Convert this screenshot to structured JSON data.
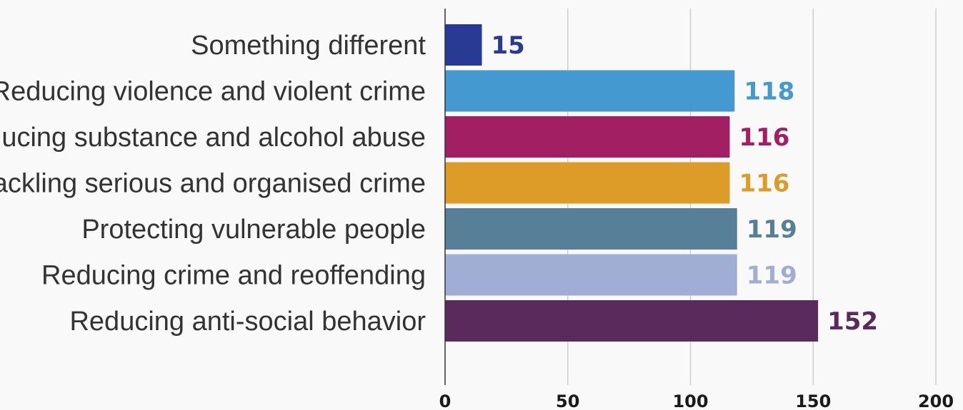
{
  "chart_data": {
    "type": "bar",
    "orientation": "horizontal",
    "categories": [
      "Something different",
      "Reducing violence and violent crime",
      "Reducing substance and alcohol abuse",
      "Tackling serious and organised crime",
      "Protecting vulnerable people",
      "Reducing crime and reoffending",
      "Reducing anti-social behavior"
    ],
    "values": [
      15,
      118,
      116,
      116,
      119,
      119,
      152
    ],
    "colors": [
      "#283a94",
      "#4499d0",
      "#a11f62",
      "#dd9c27",
      "#587f98",
      "#a0aed6",
      "#5a2a5c"
    ],
    "xlim": [
      0,
      200
    ],
    "xticks": [
      0,
      50,
      100,
      150,
      200
    ],
    "xtick_labels": [
      "0",
      "50",
      "100",
      "150",
      "200"
    ],
    "title": "",
    "xlabel": "",
    "ylabel": "",
    "grid": "vertical",
    "legend": "none"
  }
}
